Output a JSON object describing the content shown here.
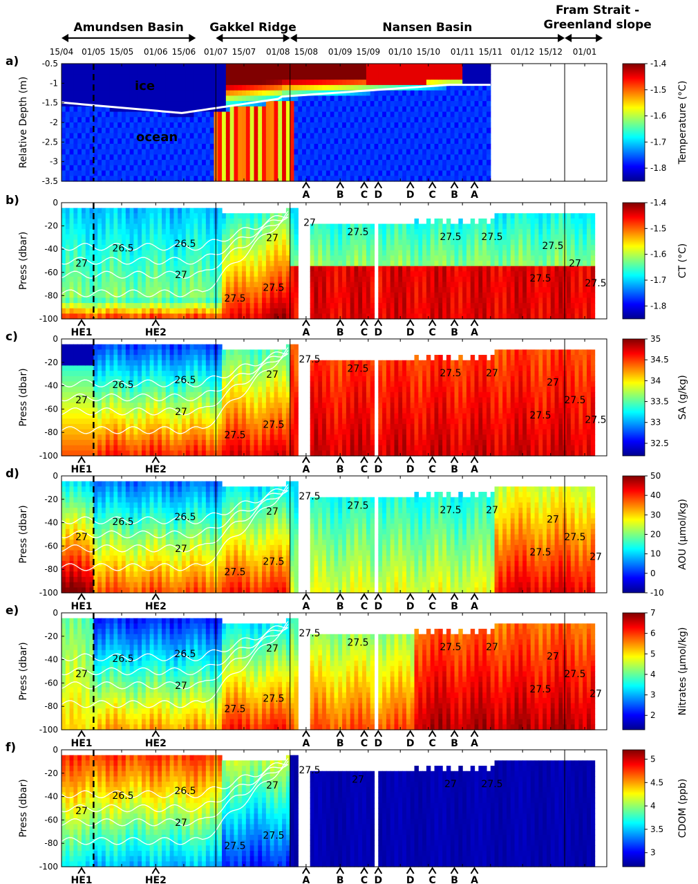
{
  "regions": [
    {
      "label": "Amundsen Basin",
      "start": "15/04",
      "end": "21/06"
    },
    {
      "label": "Gakkel Ridge",
      "start": "01/07",
      "end": "07/08"
    },
    {
      "label": "Nansen Basin",
      "start": "07/08",
      "end": "22/12"
    },
    {
      "label": "Fram Strait -\nGreenland slope",
      "start": "22/12",
      "end": "10/01"
    }
  ],
  "date_ticks": [
    "15/04",
    "01/05",
    "15/05",
    "01/06",
    "15/06",
    "01/07",
    "15/07",
    "01/08",
    "15/08",
    "01/09",
    "15/09",
    "01/10",
    "15/10",
    "01/11",
    "15/11",
    "01/12",
    "15/12",
    "01/01"
  ],
  "markers": {
    "letters": [
      "A",
      "B",
      "C",
      "D",
      "D",
      "C",
      "B",
      "A"
    ],
    "letter_dates": [
      "15/08",
      "01/09",
      "13/09",
      "20/09",
      "06/10",
      "17/10",
      "28/10",
      "07/11"
    ],
    "he": [
      "HE1",
      "HE2"
    ],
    "he_dates": [
      "25/04",
      "01/06"
    ],
    "dashed_line_date": "01/05",
    "vertical_line_dates": [
      "01/07",
      "07/08",
      "22/12"
    ]
  },
  "chart_data": [
    {
      "panel": "a)",
      "type": "heatmap",
      "ylabel": "Relative Depth (m)",
      "yticks": [
        "-0.5",
        "-1",
        "-1.5",
        "-2",
        "-2.5",
        "-3",
        "-3.5"
      ],
      "ylim": [
        -3.5,
        -0.5
      ],
      "annotations": [
        "ice",
        "ocean"
      ],
      "colorbar": {
        "label": "Temperature (°C)",
        "ticks": [
          "-1.4",
          "-1.5",
          "-1.6",
          "-1.7",
          "-1.8"
        ],
        "range": [
          -1.85,
          -1.4
        ]
      },
      "data_end": "15/11"
    },
    {
      "panel": "b)",
      "type": "heatmap",
      "ylabel": "Press (dbar)",
      "yticks": [
        "0",
        "-20",
        "-40",
        "-60",
        "-80",
        "-100"
      ],
      "ylim": [
        -100,
        0
      ],
      "contour_labels": [
        "26.5",
        "27",
        "26.5",
        "27",
        "27.5",
        "27.5",
        "27",
        "27",
        "27.5",
        "27.5",
        "27.5",
        "27.5",
        "27",
        "27.5",
        "27.5"
      ],
      "colorbar": {
        "label": "CT (°C)",
        "ticks": [
          "-1.4",
          "-1.5",
          "-1.6",
          "-1.7",
          "-1.8"
        ],
        "range": [
          -1.85,
          -1.4
        ]
      }
    },
    {
      "panel": "c)",
      "type": "heatmap",
      "ylabel": "Press (dbar)",
      "yticks": [
        "0",
        "-20",
        "-40",
        "-60",
        "-80",
        "-100"
      ],
      "ylim": [
        -100,
        0
      ],
      "contour_labels": [
        "26.5",
        "27",
        "26.5",
        "27",
        "27.5",
        "27.5",
        "27",
        "27.5",
        "27.5",
        "27.5",
        "27",
        "27.5",
        "27.5",
        "27.5",
        "27"
      ],
      "colorbar": {
        "label": "SA (g/kg)",
        "ticks": [
          "35",
          "34.5",
          "34",
          "33.5",
          "33",
          "32.5"
        ],
        "range": [
          32.2,
          35
        ]
      }
    },
    {
      "panel": "d)",
      "type": "heatmap",
      "ylabel": "Press (dbar)",
      "yticks": [
        "0",
        "-20",
        "-40",
        "-60",
        "-80",
        "-100"
      ],
      "ylim": [
        -100,
        0
      ],
      "contour_labels": [
        "26.5",
        "27",
        "26.5",
        "27",
        "27.5",
        "27.5",
        "27",
        "27.5",
        "27.5",
        "27.5",
        "27",
        "27.5",
        "27.5",
        "27",
        "27"
      ],
      "colorbar": {
        "label": "AOU (μmol/kg)",
        "ticks": [
          "50",
          "40",
          "30",
          "20",
          "10",
          "0",
          "-10"
        ],
        "range": [
          -10,
          50
        ]
      }
    },
    {
      "panel": "e)",
      "type": "heatmap",
      "ylabel": "Press (dbar)",
      "yticks": [
        "0",
        "-20",
        "-40",
        "-60",
        "-80",
        "-100"
      ],
      "ylim": [
        -100,
        0
      ],
      "contour_labels": [
        "26.5",
        "27",
        "26.5",
        "27",
        "27.5",
        "27.5",
        "27",
        "27.5",
        "27.5",
        "27.5",
        "27",
        "27.5",
        "27.5",
        "27",
        "27"
      ],
      "colorbar": {
        "label": "Nitrates (μmol/kg)",
        "ticks": [
          "7",
          "6",
          "5",
          "4",
          "3",
          "2"
        ],
        "range": [
          1.3,
          7
        ]
      }
    },
    {
      "panel": "f)",
      "type": "heatmap",
      "ylabel": "Press (dbar)",
      "yticks": [
        "0",
        "-20",
        "-40",
        "-60",
        "-80",
        "-100"
      ],
      "ylim": [
        -100,
        0
      ],
      "contour_labels": [
        "26.5",
        "27",
        "26.5",
        "27",
        "27.5",
        "27.5",
        "27",
        "27.5",
        "27",
        "27",
        "27.5"
      ],
      "colorbar": {
        "label": "CDOM (ppb)",
        "ticks": [
          "5",
          "4.5",
          "4",
          "3.5",
          "3"
        ],
        "range": [
          2.7,
          5.2
        ]
      }
    }
  ]
}
